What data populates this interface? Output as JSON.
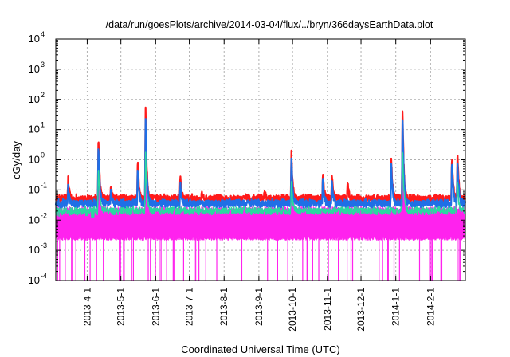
{
  "chart_data": {
    "type": "line",
    "title": "/data/run/goesPlots/archive/2014-03-04/flux/../bryn/366daysEarthData.plot",
    "xlabel": "Coordinated Universal Time (UTC)",
    "ylabel": "cGy/day",
    "y_scale": "log",
    "ylim": [
      0.0001,
      10000
    ],
    "xlim": [
      "2013-03-04",
      "2014-03-04"
    ],
    "grid": true,
    "legend": "none",
    "y_ticks": [
      {
        "base": "10",
        "exp": "-4",
        "value": 0.0001
      },
      {
        "base": "10",
        "exp": "-3",
        "value": 0.001
      },
      {
        "base": "10",
        "exp": "-2",
        "value": 0.01
      },
      {
        "base": "10",
        "exp": "-1",
        "value": 0.1
      },
      {
        "base": "10",
        "exp": "0",
        "value": 1
      },
      {
        "base": "10",
        "exp": "1",
        "value": 10
      },
      {
        "base": "10",
        "exp": "2",
        "value": 100
      },
      {
        "base": "10",
        "exp": "3",
        "value": 1000
      },
      {
        "base": "10",
        "exp": "4",
        "value": 10000
      }
    ],
    "x_ticks": [
      {
        "label": "2013-4-1",
        "date": "2013-04-01"
      },
      {
        "label": "2013-5-1",
        "date": "2013-05-01"
      },
      {
        "label": "2013-6-1",
        "date": "2013-06-01"
      },
      {
        "label": "2013-7-1",
        "date": "2013-07-01"
      },
      {
        "label": "2013-8-1",
        "date": "2013-08-01"
      },
      {
        "label": "2013-9-1",
        "date": "2013-09-01"
      },
      {
        "label": "2013-10-1",
        "date": "2013-10-01"
      },
      {
        "label": "2013-11-1",
        "date": "2013-11-01"
      },
      {
        "label": "2013-12-1",
        "date": "2013-12-01"
      },
      {
        "label": "2014-1-1",
        "date": "2014-01-01"
      },
      {
        "label": "2014-2-1",
        "date": "2014-02-01"
      }
    ],
    "series": [
      {
        "color": "#ff1a1a",
        "baseline": 0.05,
        "peaks": [
          {
            "date": "2013-03-15",
            "value": 0.25
          },
          {
            "date": "2013-04-11",
            "value": 6
          },
          {
            "date": "2013-04-22",
            "value": 0.15
          },
          {
            "date": "2013-05-16",
            "value": 0.9
          },
          {
            "date": "2013-05-23",
            "value": 50
          },
          {
            "date": "2013-06-23",
            "value": 0.3
          },
          {
            "date": "2013-07-12",
            "value": 0.1
          },
          {
            "date": "2013-09-06",
            "value": 0.1
          },
          {
            "date": "2013-09-30",
            "value": 1.8
          },
          {
            "date": "2013-10-28",
            "value": 0.4
          },
          {
            "date": "2013-11-05",
            "value": 0.35
          },
          {
            "date": "2013-11-19",
            "value": 0.2
          },
          {
            "date": "2013-12-28",
            "value": 1.2
          },
          {
            "date": "2014-01-07",
            "value": 70
          },
          {
            "date": "2014-02-20",
            "value": 1.5
          },
          {
            "date": "2014-02-25",
            "value": 1.8
          }
        ]
      },
      {
        "color": "#1f6fe6",
        "baseline": 0.035,
        "peaks": [
          {
            "date": "2013-03-15",
            "value": 0.15
          },
          {
            "date": "2013-04-11",
            "value": 4
          },
          {
            "date": "2013-04-22",
            "value": 0.1
          },
          {
            "date": "2013-05-16",
            "value": 0.6
          },
          {
            "date": "2013-05-23",
            "value": 25
          },
          {
            "date": "2013-06-23",
            "value": 0.2
          },
          {
            "date": "2013-09-30",
            "value": 1.2
          },
          {
            "date": "2013-10-28",
            "value": 0.3
          },
          {
            "date": "2013-11-05",
            "value": 0.25
          },
          {
            "date": "2013-12-28",
            "value": 0.8
          },
          {
            "date": "2014-01-07",
            "value": 40
          },
          {
            "date": "2014-02-20",
            "value": 1
          },
          {
            "date": "2014-02-25",
            "value": 1.2
          }
        ]
      },
      {
        "color": "#2ad8a0",
        "baseline": 0.02,
        "peaks": [
          {
            "date": "2013-04-11",
            "value": 0.8
          },
          {
            "date": "2013-05-23",
            "value": 2
          },
          {
            "date": "2013-09-30",
            "value": 0.2
          },
          {
            "date": "2014-01-07",
            "value": 3
          },
          {
            "date": "2014-02-25",
            "value": 0.2
          }
        ]
      },
      {
        "color": "#ff22ee",
        "baseline": 0.01,
        "low": 0.0025,
        "peaks": [
          {
            "date": "2013-04-11",
            "value": 0.3
          },
          {
            "date": "2013-05-23",
            "value": 15
          },
          {
            "date": "2013-09-30",
            "value": 0.5
          },
          {
            "date": "2014-01-07",
            "value": 20
          }
        ]
      }
    ]
  }
}
